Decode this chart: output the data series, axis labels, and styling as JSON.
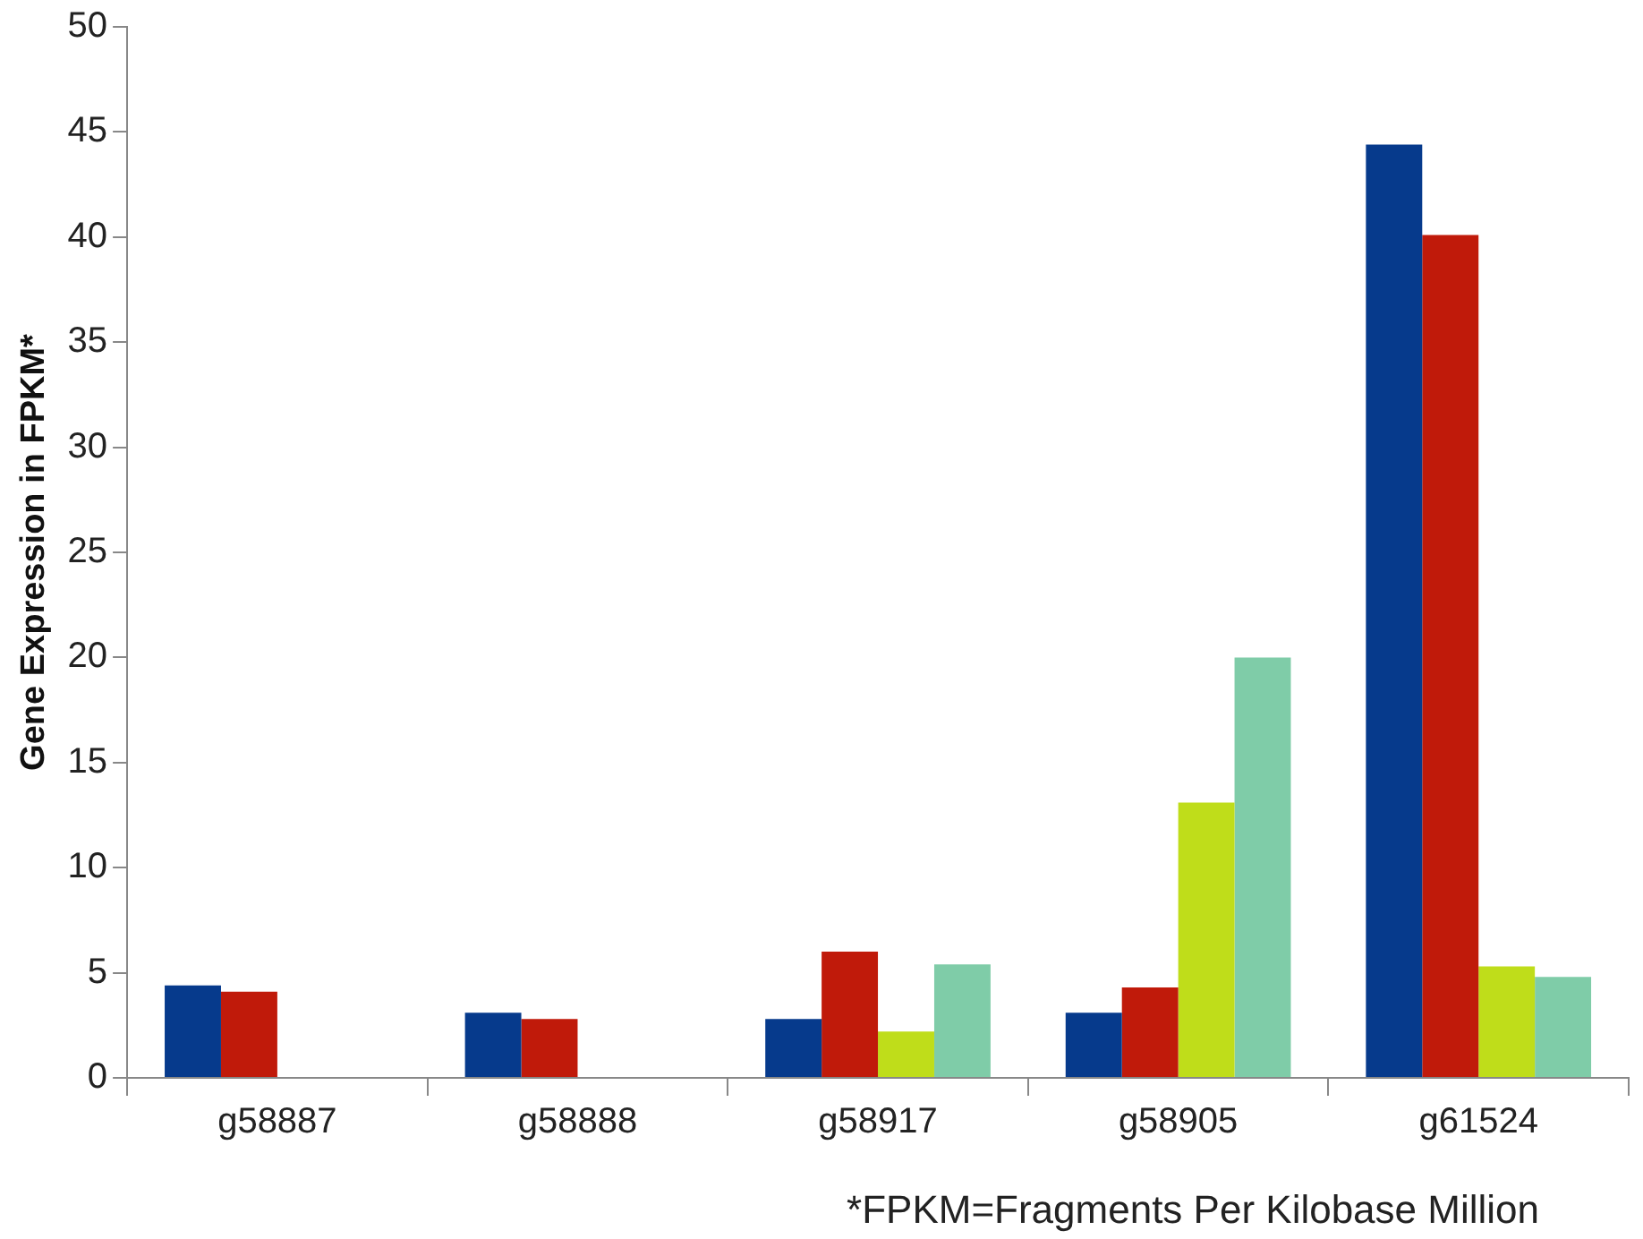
{
  "chart_data": {
    "type": "bar",
    "ylabel": "Gene Expression in FPKM*",
    "categories": [
      "g58887",
      "g58888",
      "g58917",
      "g58905",
      "g61524"
    ],
    "series": [
      {
        "color": "#063a8c",
        "values": [
          4.4,
          3.1,
          2.8,
          3.1,
          44.4
        ]
      },
      {
        "color": "#c01a0a",
        "values": [
          4.1,
          2.8,
          6.0,
          4.3,
          40.1
        ]
      },
      {
        "color": "#bfdd1a",
        "values": [
          null,
          null,
          2.2,
          13.1,
          5.3
        ]
      },
      {
        "color": "#7fcca8",
        "values": [
          null,
          null,
          5.4,
          20.0,
          4.8
        ]
      }
    ],
    "ylim": [
      0,
      50
    ],
    "yticks": [
      0,
      5,
      10,
      15,
      20,
      25,
      30,
      35,
      40,
      45,
      50
    ],
    "legend": false,
    "annotations": [
      "*FPKM=Fragments Per Kilobase Million"
    ]
  }
}
